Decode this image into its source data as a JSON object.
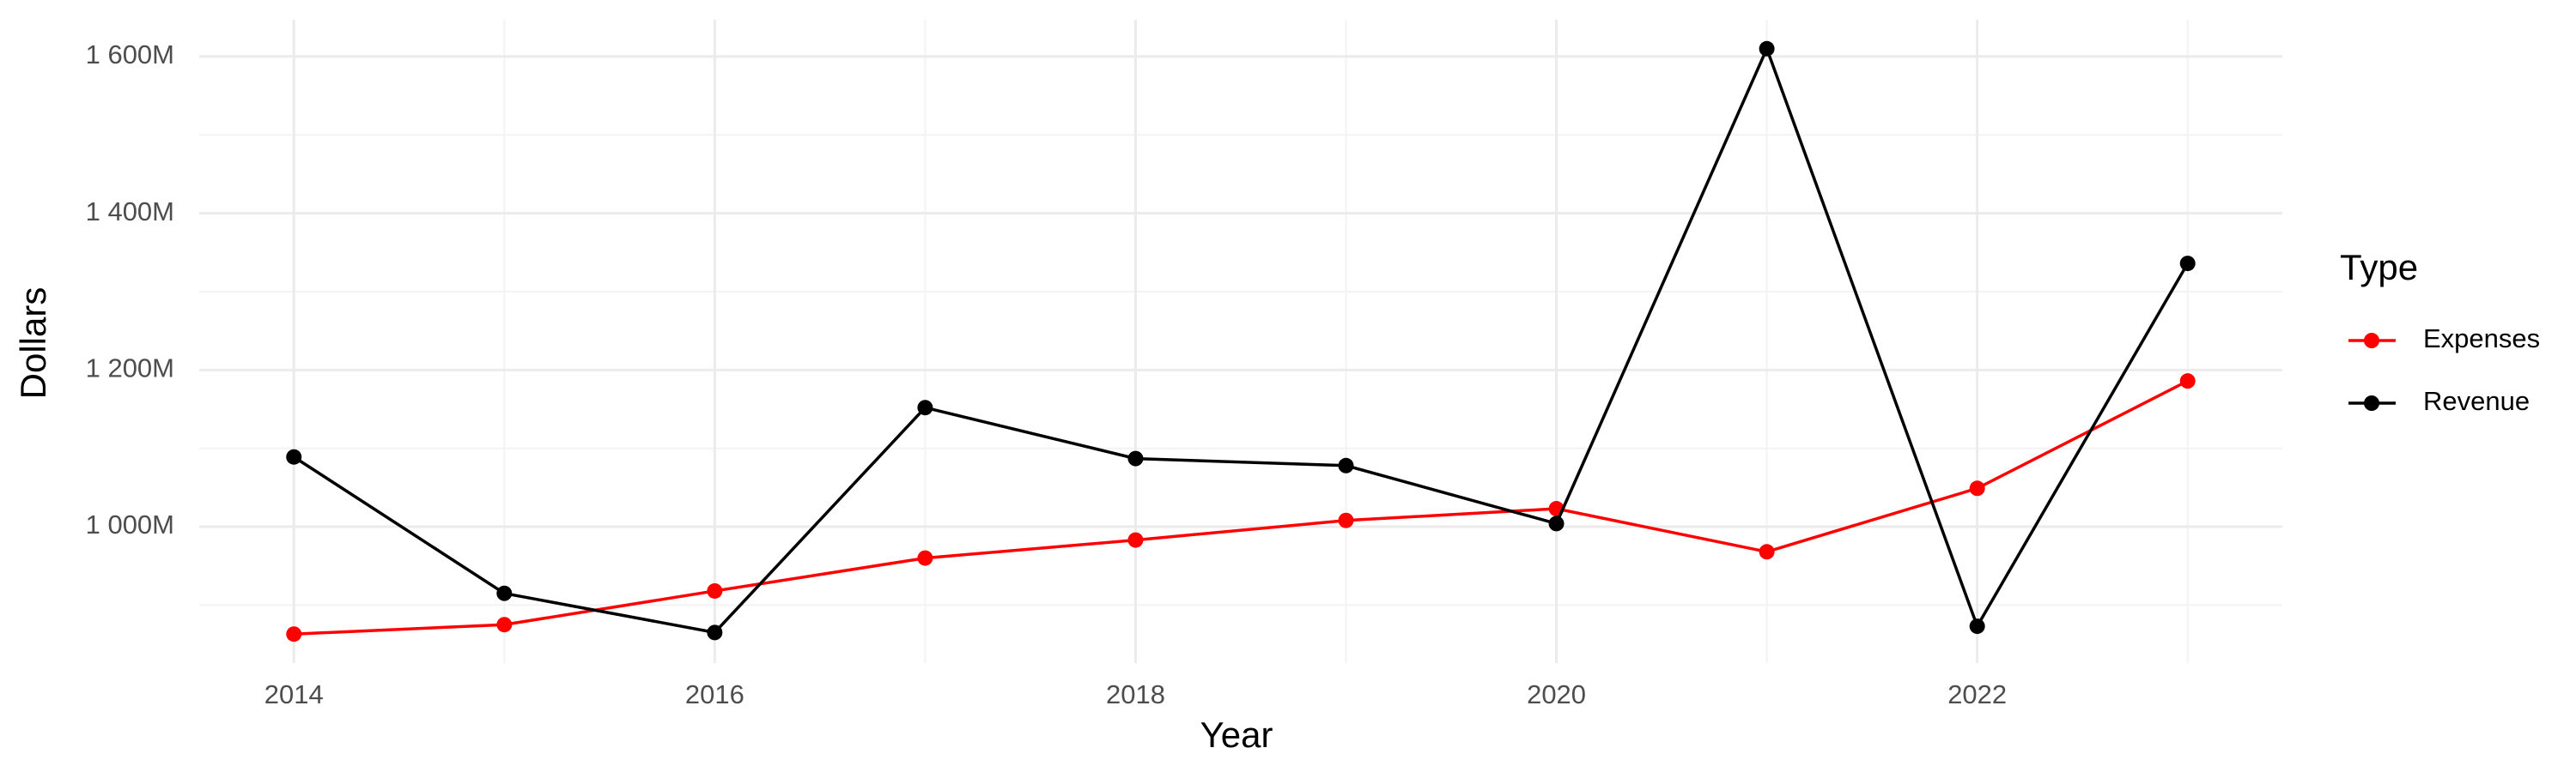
{
  "chart_data": {
    "type": "line",
    "x_label": "Year",
    "y_label": "Dollars",
    "legend_title": "Type",
    "legend_position": "right",
    "grid": true,
    "x": [
      2014,
      2015,
      2016,
      2017,
      2018,
      2019,
      2020,
      2021,
      2022,
      2023
    ],
    "series": [
      {
        "name": "Expenses",
        "color": "#ff0000",
        "values": [
          863000000,
          875000000,
          918000000,
          960000000,
          983000000,
          1008000000,
          1023000000,
          968000000,
          1049000000,
          1186000000
        ]
      },
      {
        "name": "Revenue",
        "color": "#000000",
        "values": [
          1089000000,
          915000000,
          865000000,
          1152000000,
          1087000000,
          1078000000,
          1004000000,
          1610000000,
          873000000,
          1336000000
        ]
      }
    ],
    "xlim": [
      2013.55,
      2023.45
    ],
    "xticks": [
      2014,
      2016,
      2018,
      2020,
      2022
    ],
    "ylim": [
      826000000,
      1647000000
    ],
    "yticks": [
      {
        "value": 1000000000,
        "label": "1 000M"
      },
      {
        "value": 1200000000,
        "label": "1 200M"
      },
      {
        "value": 1400000000,
        "label": "1 400M"
      },
      {
        "value": 1600000000,
        "label": "1 600M"
      }
    ]
  }
}
